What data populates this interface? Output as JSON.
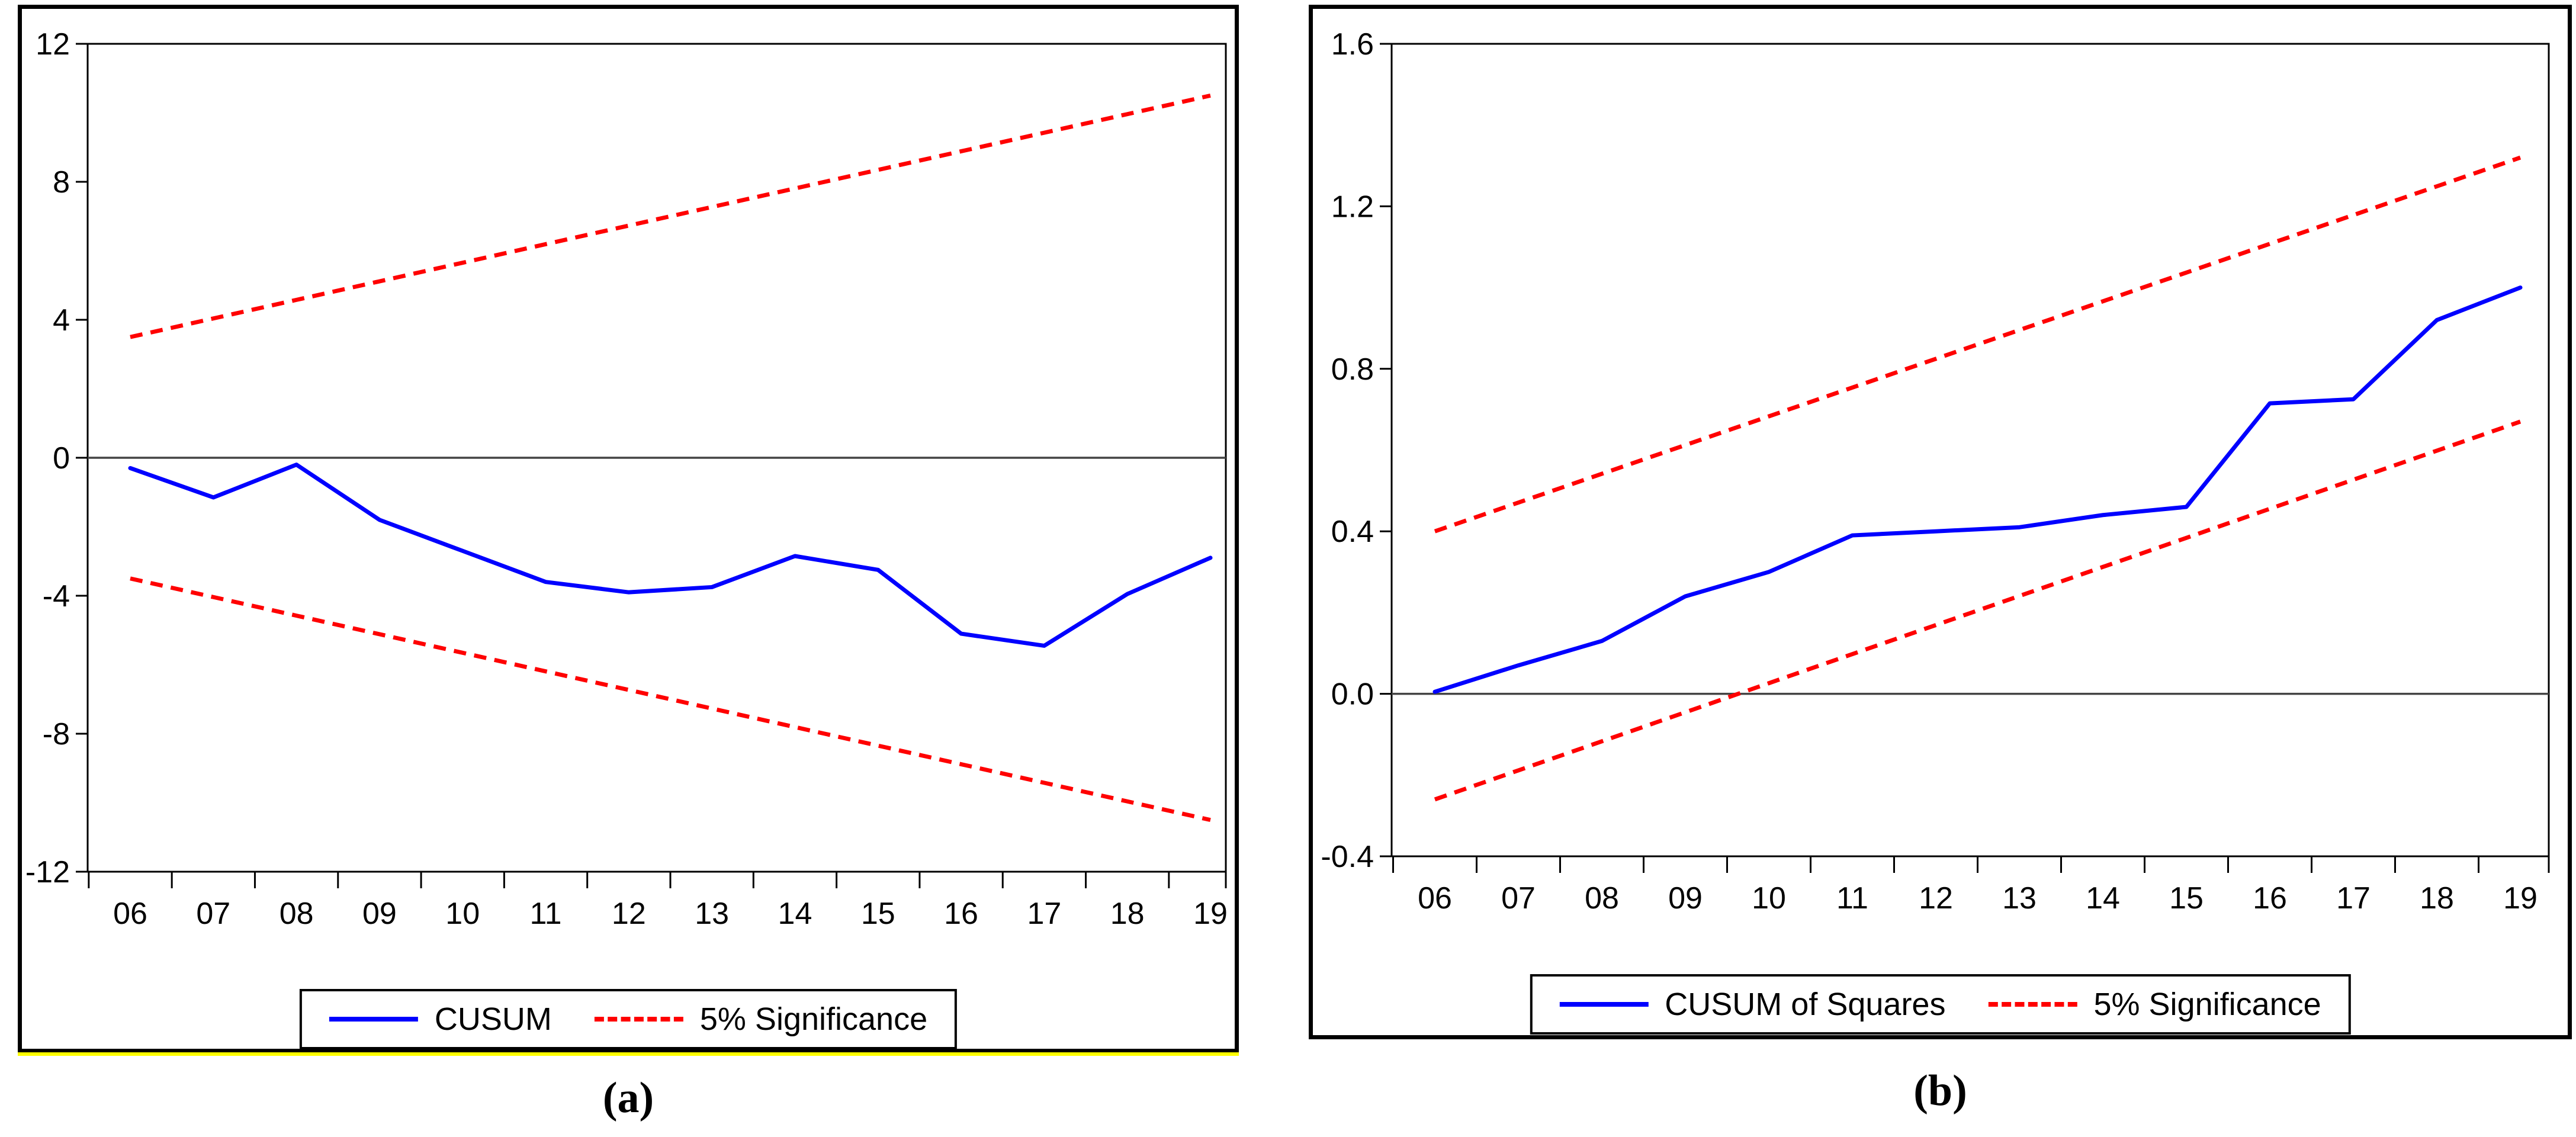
{
  "figure": {
    "captions": {
      "a": "(a)",
      "b": "(b)"
    },
    "colors": {
      "series_line": "#0000ff",
      "significance_band": "#ff0000",
      "axis": "#000000",
      "zero_line": "#444444",
      "panel_frame": "#000000",
      "highlight_underline": "#ffff00"
    }
  },
  "chart_data": [
    {
      "id": "panel-a",
      "type": "line",
      "title": "",
      "xlabel": "",
      "ylabel": "",
      "categories": [
        "06",
        "07",
        "08",
        "09",
        "10",
        "11",
        "12",
        "13",
        "14",
        "15",
        "16",
        "17",
        "18",
        "19"
      ],
      "series": [
        {
          "name": "CUSUM",
          "color": "#0000ff",
          "style": "solid",
          "values": [
            -0.3,
            -1.15,
            -0.2,
            -1.8,
            -2.7,
            -3.6,
            -3.9,
            -3.75,
            -2.85,
            -3.25,
            -5.1,
            -5.45,
            -3.95,
            -2.9
          ]
        }
      ],
      "significance_band": {
        "name": "5% Significance",
        "color": "#ff0000",
        "style": "dashed",
        "upper_endpoints": [
          3.5,
          10.5
        ],
        "lower_endpoints": [
          -3.5,
          -10.5
        ]
      },
      "y_ticks": [
        "12",
        "8",
        "4",
        "0",
        "-4",
        "-8",
        "-12"
      ],
      "ylim": [
        -12,
        12
      ],
      "zero_line": true,
      "grid": false,
      "legend_position": "bottom"
    },
    {
      "id": "panel-b",
      "type": "line",
      "title": "",
      "xlabel": "",
      "ylabel": "",
      "categories": [
        "06",
        "07",
        "08",
        "09",
        "10",
        "11",
        "12",
        "13",
        "14",
        "15",
        "16",
        "17",
        "18",
        "19"
      ],
      "series": [
        {
          "name": "CUSUM of Squares",
          "color": "#0000ff",
          "style": "solid",
          "values": [
            0.005,
            0.07,
            0.13,
            0.24,
            0.3,
            0.39,
            0.4,
            0.41,
            0.44,
            0.46,
            0.715,
            0.725,
            0.92,
            1.0
          ]
        }
      ],
      "significance_band": {
        "name": "5% Significance",
        "color": "#ff0000",
        "style": "dashed",
        "upper_endpoints": [
          0.4,
          1.32
        ],
        "lower_endpoints": [
          -0.26,
          0.67
        ]
      },
      "y_ticks": [
        "1.6",
        "1.2",
        "0.8",
        "0.4",
        "0.0",
        "-0.4"
      ],
      "ylim": [
        -0.4,
        1.6
      ],
      "zero_line": true,
      "grid": false,
      "legend_position": "bottom"
    }
  ]
}
